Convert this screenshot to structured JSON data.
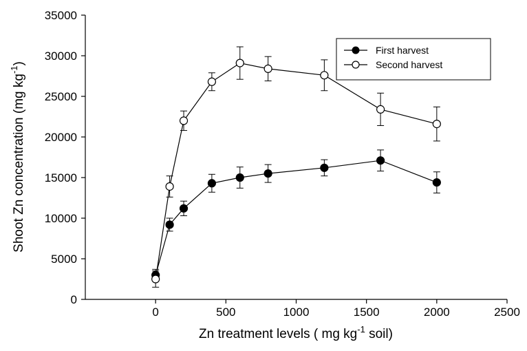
{
  "chart_data": {
    "type": "line",
    "xlim": [
      -500,
      2500
    ],
    "ylim": [
      0,
      35000
    ],
    "x_ticks": [
      0,
      500,
      1000,
      1500,
      2000,
      2500
    ],
    "y_ticks": [
      0,
      5000,
      10000,
      15000,
      20000,
      25000,
      30000,
      35000
    ],
    "xlabel": {
      "prefix": "Zn treatment levels ( mg kg",
      "sup": "-1",
      "suffix": " soil)"
    },
    "ylabel": {
      "prefix": "Shoot Zn concentration (mg kg",
      "sup": "-1",
      "suffix": ")"
    },
    "legend_position": "top-right",
    "grid": false,
    "series": [
      {
        "name": "First harvest",
        "marker": "filled-circle",
        "x": [
          0,
          100,
          200,
          400,
          600,
          800,
          1200,
          1600,
          2000
        ],
        "y": [
          3000,
          9200,
          11200,
          14300,
          15000,
          15500,
          16200,
          17100,
          14400
        ],
        "err": [
          700,
          800,
          900,
          1100,
          1300,
          1100,
          1000,
          1300,
          1300
        ]
      },
      {
        "name": "Second harvest",
        "marker": "open-circle",
        "x": [
          0,
          100,
          200,
          400,
          600,
          800,
          1200,
          1600,
          2000
        ],
        "y": [
          2500,
          13900,
          22000,
          26800,
          29100,
          28400,
          27600,
          23400,
          21600
        ],
        "err": [
          1000,
          1300,
          1200,
          1100,
          2000,
          1500,
          1900,
          2000,
          2100
        ]
      }
    ]
  }
}
